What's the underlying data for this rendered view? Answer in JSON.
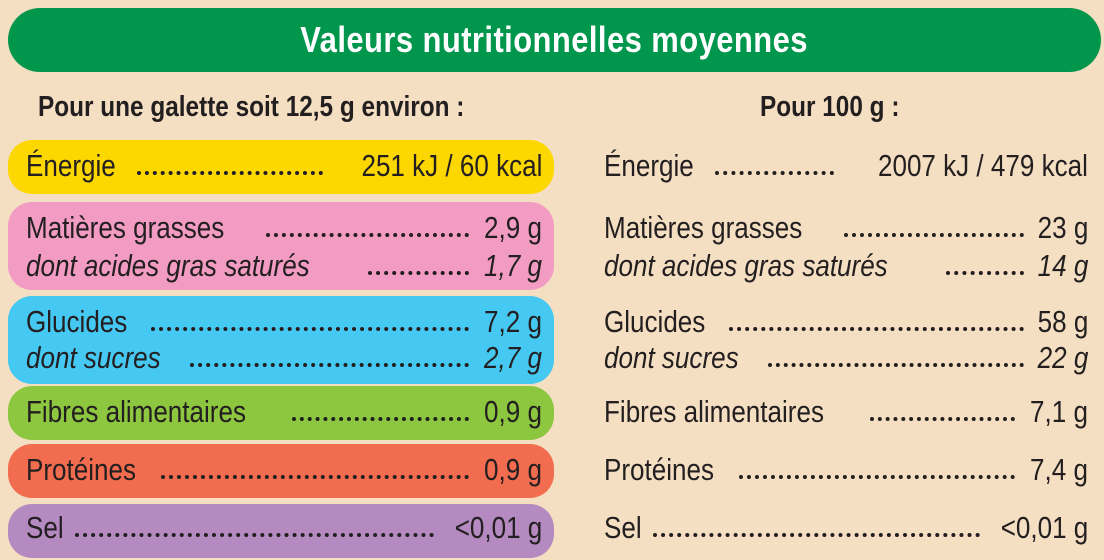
{
  "title": "Valeurs nutritionnelles moyennes",
  "headers": {
    "per_portion": "Pour une galette soit 12,5 g environ :",
    "per_100g": "Pour 100 g :"
  },
  "colors": {
    "background": "#f5dfc2",
    "title_bar": "#00964b",
    "energie": "#fcd700",
    "matieres_grasses": "#f29bc3",
    "glucides": "#45c8f2",
    "fibres": "#8dc63f",
    "proteines": "#f26c4f",
    "sel": "#b48ac0"
  },
  "rows": [
    {
      "label": "Énergie",
      "portion": "251 kJ / 60 kcal",
      "per100": "2007 kJ / 479 kcal",
      "italic": false
    },
    {
      "label": "Matières grasses",
      "portion": "2,9 g",
      "per100": "23 g",
      "italic": false
    },
    {
      "label": "dont acides gras saturés",
      "portion": "1,7 g",
      "per100": "14 g",
      "italic": true
    },
    {
      "label": "Glucides",
      "portion": "7,2 g",
      "per100": "58 g",
      "italic": false
    },
    {
      "label": "dont sucres",
      "portion": "2,7 g",
      "per100": "22 g",
      "italic": true
    },
    {
      "label": "Fibres alimentaires",
      "portion": "0,9 g",
      "per100": "7,1 g",
      "italic": false
    },
    {
      "label": "Protéines",
      "portion": "0,9 g",
      "per100": "7,4 g",
      "italic": false
    },
    {
      "label": "Sel",
      "portion": "<0,01 g",
      "per100": "<0,01 g",
      "italic": false
    }
  ]
}
